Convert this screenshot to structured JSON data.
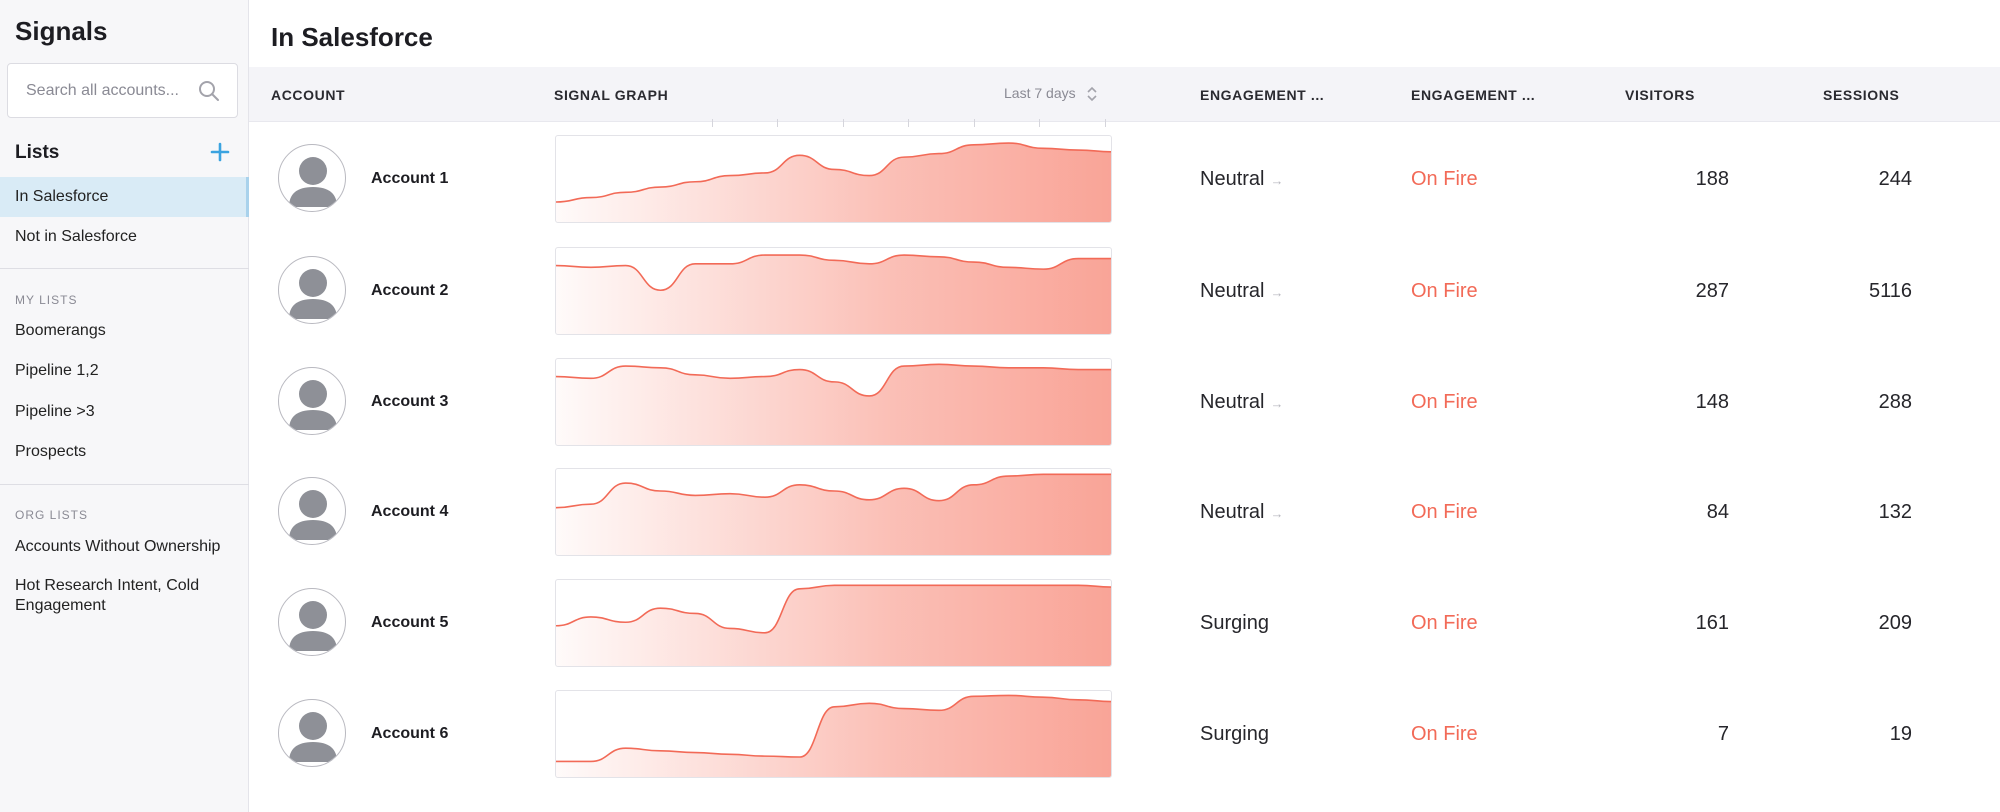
{
  "sidebar": {
    "title": "Signals",
    "search_placeholder": "Search all accounts...",
    "lists_heading": "Lists",
    "primary_items": [
      "In Salesforce",
      "Not in Salesforce"
    ],
    "my_lists_label": "MY LISTS",
    "my_lists": [
      "Boomerangs",
      "Pipeline 1,2",
      "Pipeline >3",
      "Prospects"
    ],
    "org_lists_label": "ORG LISTS",
    "org_lists": [
      "Accounts Without Ownership",
      "Hot Research Intent, Cold Engagement"
    ],
    "active_item": "In Salesforce"
  },
  "main": {
    "title": "In Salesforce",
    "columns": {
      "account": "ACCOUNT",
      "signal_graph": "SIGNAL GRAPH",
      "range": "Last 7 days",
      "engagement_a": "ENGAGEMENT ...",
      "engagement_b": "ENGAGEMENT ...",
      "visitors": "VISITORS",
      "sessions": "SESSIONS"
    },
    "rows": [
      {
        "name": "Account 1",
        "engagement_a": "Neutral",
        "engagement_a_arrow": "→",
        "engagement_b": "On Fire",
        "visitors": "188",
        "sessions": "244",
        "signal": [
          0.25,
          0.3,
          0.36,
          0.42,
          0.48,
          0.55,
          0.58,
          0.78,
          0.62,
          0.55,
          0.76,
          0.8,
          0.9,
          0.92,
          0.86,
          0.84,
          0.82
        ]
      },
      {
        "name": "Account 2",
        "engagement_a": "Neutral",
        "engagement_a_arrow": "→",
        "engagement_b": "On Fire",
        "visitors": "287",
        "sessions": "5116",
        "signal": [
          0.8,
          0.78,
          0.8,
          0.52,
          0.82,
          0.82,
          0.92,
          0.92,
          0.86,
          0.82,
          0.92,
          0.9,
          0.84,
          0.78,
          0.76,
          0.88,
          0.88
        ]
      },
      {
        "name": "Account 3",
        "engagement_a": "Neutral",
        "engagement_a_arrow": "→",
        "engagement_b": "On Fire",
        "visitors": "148",
        "sessions": "288",
        "signal": [
          0.8,
          0.78,
          0.92,
          0.9,
          0.82,
          0.78,
          0.8,
          0.88,
          0.74,
          0.58,
          0.92,
          0.94,
          0.92,
          0.9,
          0.9,
          0.88,
          0.88
        ]
      },
      {
        "name": "Account 4",
        "engagement_a": "Neutral",
        "engagement_a_arrow": "→",
        "engagement_b": "On Fire",
        "visitors": "84",
        "sessions": "132",
        "signal": [
          0.56,
          0.6,
          0.84,
          0.75,
          0.7,
          0.72,
          0.68,
          0.82,
          0.75,
          0.65,
          0.78,
          0.64,
          0.82,
          0.92,
          0.94,
          0.94,
          0.94
        ]
      },
      {
        "name": "Account 5",
        "engagement_a": "Surging",
        "engagement_a_arrow": "",
        "engagement_b": "On Fire",
        "visitors": "161",
        "sessions": "209",
        "signal": [
          0.48,
          0.58,
          0.52,
          0.68,
          0.62,
          0.45,
          0.4,
          0.9,
          0.94,
          0.94,
          0.94,
          0.94,
          0.94,
          0.94,
          0.94,
          0.94,
          0.92
        ]
      },
      {
        "name": "Account 6",
        "engagement_a": "Surging",
        "engagement_a_arrow": "",
        "engagement_b": "On Fire",
        "visitors": "7",
        "sessions": "19",
        "signal": [
          0.2,
          0.2,
          0.35,
          0.32,
          0.3,
          0.28,
          0.26,
          0.25,
          0.82,
          0.86,
          0.8,
          0.78,
          0.94,
          0.95,
          0.93,
          0.9,
          0.88
        ]
      }
    ]
  },
  "colors": {
    "accent": "#f26a57",
    "graph_fill": "#f9a497",
    "active_nav": "#d9ebf6",
    "add_icon": "#3aa3e0"
  },
  "icons": {
    "search": "search-icon",
    "add": "plus-icon",
    "avatar": "user-avatar-icon",
    "sort": "sort-icon",
    "arrow": "arrow-right-icon"
  }
}
